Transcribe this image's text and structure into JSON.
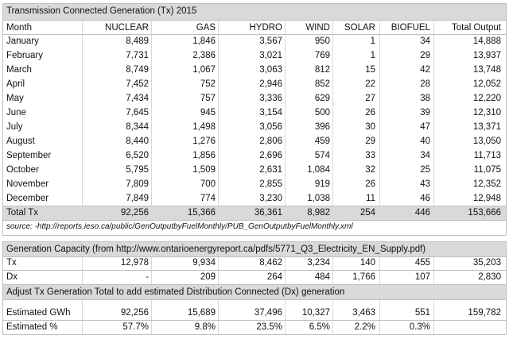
{
  "title": "Transmission Connected Generation (Tx) 2015",
  "header": [
    "Month",
    "NUCLEAR",
    "GAS",
    "HYDRO",
    "WIND",
    "SOLAR",
    "BIOFUEL",
    "Total Output"
  ],
  "rows": [
    [
      "January",
      "8,489",
      "1,846",
      "3,567",
      "950",
      "1",
      "34",
      "14,888"
    ],
    [
      "February",
      "7,731",
      "2,386",
      "3,021",
      "769",
      "1",
      "29",
      "13,937"
    ],
    [
      "March",
      "8,749",
      "1,067",
      "3,063",
      "812",
      "15",
      "42",
      "13,748"
    ],
    [
      "April",
      "7,452",
      "752",
      "2,946",
      "852",
      "22",
      "28",
      "12,052"
    ],
    [
      "May",
      "7,434",
      "757",
      "3,336",
      "629",
      "27",
      "38",
      "12,220"
    ],
    [
      "June",
      "7,645",
      "945",
      "3,154",
      "500",
      "26",
      "39",
      "12,310"
    ],
    [
      "July",
      "8,344",
      "1,498",
      "3,056",
      "396",
      "30",
      "47",
      "13,371"
    ],
    [
      "August",
      "8,440",
      "1,276",
      "2,806",
      "459",
      "29",
      "40",
      "13,050"
    ],
    [
      "September",
      "6,520",
      "1,856",
      "2,696",
      "574",
      "33",
      "34",
      "11,713"
    ],
    [
      "October",
      "5,795",
      "1,509",
      "2,631",
      "1,084",
      "32",
      "25",
      "11,075"
    ],
    [
      "November",
      "7,809",
      "700",
      "2,855",
      "919",
      "26",
      "43",
      "12,352"
    ],
    [
      "December",
      "7,849",
      "774",
      "3,230",
      "1,038",
      "11",
      "46",
      "12,948"
    ]
  ],
  "total": [
    "Total Tx",
    "92,256",
    "15,366",
    "36,361",
    "8,982",
    "254",
    "446",
    "153,666"
  ],
  "source": "source: -http://reports.ieso.ca/public/GenOutputbyFuelMonthly/PUB_GenOutputbyFuelMonthly.xml",
  "capacity": {
    "title": "Generation Capacity (from http://www.ontarioenergyreport.ca/pdfs/5771_Q3_Electricity_EN_Supply.pdf)",
    "rows": [
      [
        "Tx",
        "12,978",
        "9,934",
        "8,462",
        "3,234",
        "140",
        "455",
        "35,203"
      ],
      [
        "Dx",
        "-",
        "209",
        "264",
        "484",
        "1,766",
        "107",
        "2,830"
      ]
    ]
  },
  "adjust": {
    "title": "Adjust Tx Generation Total to add estimated Distribution Connected (Dx) generation",
    "rows": [
      [
        "Estimated GWh",
        "92,256",
        "15,689",
        "37,496",
        "10,327",
        "3,463",
        "551",
        "159,782"
      ],
      [
        "Estimated %",
        "57.7%",
        "9.8%",
        "23.5%",
        "6.5%",
        "2.2%",
        "0.3%"
      ]
    ]
  }
}
